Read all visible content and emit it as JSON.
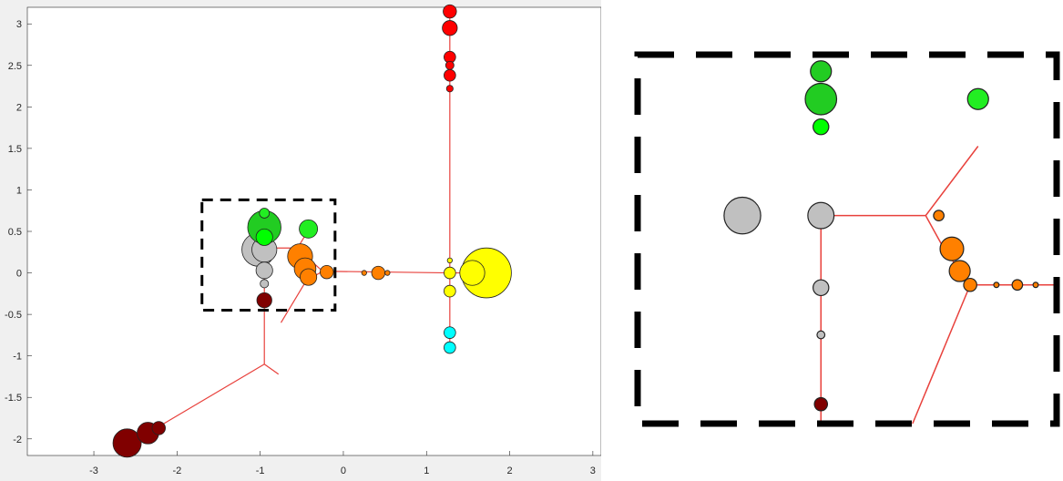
{
  "chart_data": [
    {
      "type": "scatter",
      "description_kind": "haplotype network (pie-chart nodes on a red tree)",
      "xlim": [
        -3.8,
        3.1
      ],
      "ylim": [
        -2.2,
        3.2
      ],
      "x_ticks": [
        -3,
        -2,
        -1,
        0,
        1,
        2,
        3
      ],
      "y_ticks": [
        -2,
        -1.5,
        -1,
        -0.5,
        0,
        0.5,
        1,
        1.5,
        2,
        2.5,
        3
      ],
      "x_tick_labels": [
        "-3",
        "-2",
        "-1",
        "0",
        "1",
        "2",
        "3"
      ],
      "y_tick_labels": [
        "-2",
        "-1.5",
        "-1",
        "-0.5",
        "0",
        "0.5",
        "1",
        "1.5",
        "2",
        "2.5",
        "3"
      ],
      "grid": false,
      "edge_color": "#e8413c",
      "edges": [
        [
          -0.95,
          0.3,
          -0.95,
          -0.3
        ],
        [
          -0.95,
          -0.3,
          -0.95,
          -1.1
        ],
        [
          -0.95,
          -1.1,
          -0.78,
          -1.22
        ],
        [
          -0.95,
          -1.1,
          -2.3,
          -1.9
        ],
        [
          -2.3,
          -1.9,
          -2.6,
          -2.05
        ],
        [
          -0.95,
          0.3,
          -0.55,
          0.3
        ],
        [
          -0.55,
          0.3,
          -0.4,
          0.55
        ],
        [
          -0.55,
          0.3,
          -0.45,
          0.2
        ],
        [
          -0.45,
          0.2,
          -0.25,
          0.02
        ],
        [
          -0.25,
          0.02,
          -0.45,
          -0.1
        ],
        [
          -0.45,
          -0.1,
          -0.75,
          -0.6
        ],
        [
          -0.25,
          0.02,
          1.28,
          0.0
        ],
        [
          1.28,
          0.0,
          1.28,
          3.15
        ],
        [
          1.28,
          0.0,
          1.28,
          -0.9
        ],
        [
          1.28,
          0.0,
          1.72,
          0.0
        ]
      ],
      "nodes": [
        {
          "x": -1.02,
          "y": 0.28,
          "r": 0.2,
          "color": "#c0c0c0"
        },
        {
          "x": -0.95,
          "y": 0.28,
          "r": 0.15,
          "color": "#c0c0c0"
        },
        {
          "x": -0.95,
          "y": 0.55,
          "r": 0.2,
          "color": "#22cc22"
        },
        {
          "x": -0.95,
          "y": 0.72,
          "r": 0.06,
          "color": "#22ee22"
        },
        {
          "x": -0.95,
          "y": 0.43,
          "r": 0.1,
          "color": "#00ff00"
        },
        {
          "x": -0.42,
          "y": 0.53,
          "r": 0.11,
          "color": "#22ee22"
        },
        {
          "x": -0.95,
          "y": 0.03,
          "r": 0.1,
          "color": "#c0c0c0"
        },
        {
          "x": -0.95,
          "y": -0.13,
          "r": 0.05,
          "color": "#c0c0c0"
        },
        {
          "x": -0.95,
          "y": -0.33,
          "r": 0.09,
          "color": "#800000"
        },
        {
          "x": -0.52,
          "y": 0.2,
          "r": 0.15,
          "color": "#ff8000"
        },
        {
          "x": -0.46,
          "y": 0.05,
          "r": 0.13,
          "color": "#ff8000"
        },
        {
          "x": -0.42,
          "y": -0.05,
          "r": 0.1,
          "color": "#ff8000"
        },
        {
          "x": -0.2,
          "y": 0.01,
          "r": 0.08,
          "color": "#ff8000"
        },
        {
          "x": 0.42,
          "y": 0.0,
          "r": 0.08,
          "color": "#ff8000"
        },
        {
          "x": 0.25,
          "y": 0.0,
          "r": 0.03,
          "color": "#ff8000"
        },
        {
          "x": 0.53,
          "y": 0.0,
          "r": 0.03,
          "color": "#ff8000"
        },
        {
          "x": 1.72,
          "y": 0.0,
          "r": 0.3,
          "color": "#ffff00"
        },
        {
          "x": 1.55,
          "y": 0.0,
          "r": 0.15,
          "color": "#ffff00"
        },
        {
          "x": 1.28,
          "y": 0.0,
          "r": 0.07,
          "color": "#ffff00"
        },
        {
          "x": 1.28,
          "y": -0.22,
          "r": 0.07,
          "color": "#ffff00"
        },
        {
          "x": 1.28,
          "y": 0.15,
          "r": 0.03,
          "color": "#ffff00"
        },
        {
          "x": 1.28,
          "y": -0.72,
          "r": 0.07,
          "color": "#00ffff"
        },
        {
          "x": 1.28,
          "y": -0.9,
          "r": 0.07,
          "color": "#00ffff"
        },
        {
          "x": 1.28,
          "y": 3.15,
          "r": 0.08,
          "color": "#ff0000"
        },
        {
          "x": 1.28,
          "y": 2.95,
          "r": 0.09,
          "color": "#ff0000"
        },
        {
          "x": 1.28,
          "y": 2.6,
          "r": 0.07,
          "color": "#ff0000"
        },
        {
          "x": 1.28,
          "y": 2.5,
          "r": 0.05,
          "color": "#ff0000"
        },
        {
          "x": 1.28,
          "y": 2.38,
          "r": 0.07,
          "color": "#ff0000"
        },
        {
          "x": 1.28,
          "y": 2.22,
          "r": 0.04,
          "color": "#ff0000"
        },
        {
          "x": -2.6,
          "y": -2.05,
          "r": 0.17,
          "color": "#800000"
        },
        {
          "x": -2.35,
          "y": -1.93,
          "r": 0.13,
          "color": "#800000"
        },
        {
          "x": -2.22,
          "y": -1.87,
          "r": 0.08,
          "color": "#800000"
        }
      ],
      "highlight_box": {
        "x0": -1.7,
        "x1": -0.1,
        "y0": -0.45,
        "y1": 0.88
      }
    },
    {
      "type": "scatter",
      "description_kind": "zoomed view of dashed region",
      "xlim": [
        -1.7,
        -0.1
      ],
      "ylim": [
        -0.45,
        0.88
      ],
      "edge_color": "#e8413c",
      "edges": [
        [
          -1.0,
          0.3,
          -1.0,
          -0.45
        ],
        [
          -1.0,
          0.3,
          -0.6,
          0.3
        ],
        [
          -0.6,
          0.3,
          -0.4,
          0.55
        ],
        [
          -0.6,
          0.3,
          -0.53,
          0.18
        ],
        [
          -0.53,
          0.18,
          -0.43,
          0.05
        ],
        [
          -0.43,
          0.05,
          -0.1,
          0.05
        ],
        [
          -0.43,
          0.05,
          -0.65,
          -0.45
        ]
      ],
      "nodes": [
        {
          "x": -1.3,
          "y": 0.3,
          "r": 0.07,
          "color": "#c0c0c0"
        },
        {
          "x": -1.0,
          "y": 0.3,
          "r": 0.05,
          "color": "#c0c0c0"
        },
        {
          "x": -1.0,
          "y": 0.72,
          "r": 0.06,
          "color": "#22cc22"
        },
        {
          "x": -1.0,
          "y": 0.82,
          "r": 0.04,
          "color": "#22cc22"
        },
        {
          "x": -1.0,
          "y": 0.62,
          "r": 0.03,
          "color": "#00ff00"
        },
        {
          "x": -0.4,
          "y": 0.72,
          "r": 0.04,
          "color": "#22ee22"
        },
        {
          "x": -1.0,
          "y": 0.04,
          "r": 0.03,
          "color": "#c0c0c0"
        },
        {
          "x": -1.0,
          "y": -0.13,
          "r": 0.015,
          "color": "#c0c0c0"
        },
        {
          "x": -1.0,
          "y": -0.38,
          "r": 0.025,
          "color": "#800000"
        },
        {
          "x": -0.55,
          "y": 0.3,
          "r": 0.02,
          "color": "#ff8000"
        },
        {
          "x": -0.5,
          "y": 0.18,
          "r": 0.045,
          "color": "#ff8000"
        },
        {
          "x": -0.47,
          "y": 0.1,
          "r": 0.04,
          "color": "#ff8000"
        },
        {
          "x": -0.43,
          "y": 0.05,
          "r": 0.025,
          "color": "#ff8000"
        },
        {
          "x": -0.33,
          "y": 0.05,
          "r": 0.01,
          "color": "#ff8000"
        },
        {
          "x": -0.25,
          "y": 0.05,
          "r": 0.02,
          "color": "#ff8000"
        },
        {
          "x": -0.18,
          "y": 0.05,
          "r": 0.01,
          "color": "#ff8000"
        }
      ],
      "frame": "dashed"
    }
  ]
}
